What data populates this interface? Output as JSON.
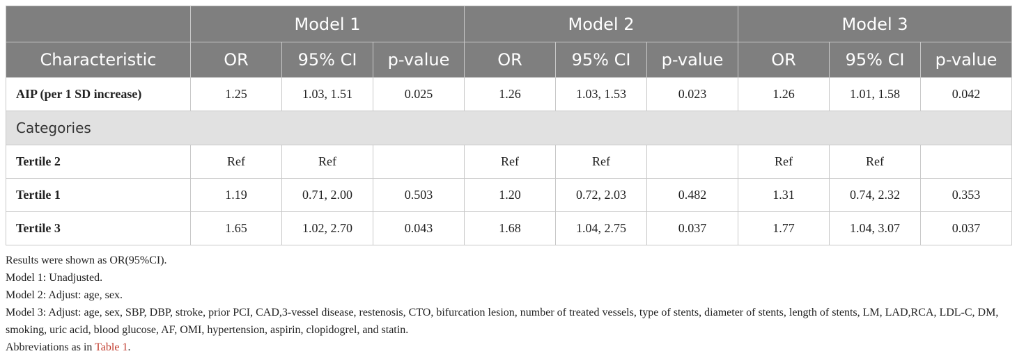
{
  "table": {
    "models": [
      "Model 1",
      "Model 2",
      "Model 3"
    ],
    "characteristic_header": "Characteristic",
    "sub_headers": [
      "OR",
      "95% CI",
      "p-value"
    ],
    "rows": [
      {
        "label": "AIP (per 1 SD increase)",
        "values": [
          "1.25",
          "1.03, 1.51",
          "0.025",
          "1.26",
          "1.03, 1.53",
          "0.023",
          "1.26",
          "1.01, 1.58",
          "0.042"
        ]
      },
      {
        "category": "Categories"
      },
      {
        "label": "Tertile 2",
        "values": [
          "Ref",
          "Ref",
          "",
          "Ref",
          "Ref",
          "",
          "Ref",
          "Ref",
          ""
        ]
      },
      {
        "label": "Tertile 1",
        "values": [
          "1.19",
          "0.71, 2.00",
          "0.503",
          "1.20",
          "0.72, 2.03",
          "0.482",
          "1.31",
          "0.74, 2.32",
          "0.353"
        ]
      },
      {
        "label": "Tertile 3",
        "values": [
          "1.65",
          "1.02, 2.70",
          "0.043",
          "1.68",
          "1.04, 2.75",
          "0.037",
          "1.77",
          "1.04, 3.07",
          "0.037"
        ]
      }
    ]
  },
  "notes": {
    "line1": "Results were shown as OR(95%CI).",
    "line2": "Model 1: Unadjusted.",
    "line3": "Model 2: Adjust: age, sex.",
    "line4": "Model 3: Adjust: age, sex, SBP, DBP, stroke, prior PCI, CAD,3-vessel disease, restenosis, CTO, bifurcation lesion, number of treated vessels, type of stents, diameter of stents, length of stents, LM, LAD,RCA, LDL-C, DM, smoking, uric acid, blood glucose, AF, OMI, hypertension, aspirin, clopidogrel, and statin.",
    "abbrev_prefix": "Abbreviations as in ",
    "abbrev_link": "Table 1",
    "abbrev_suffix": "."
  }
}
